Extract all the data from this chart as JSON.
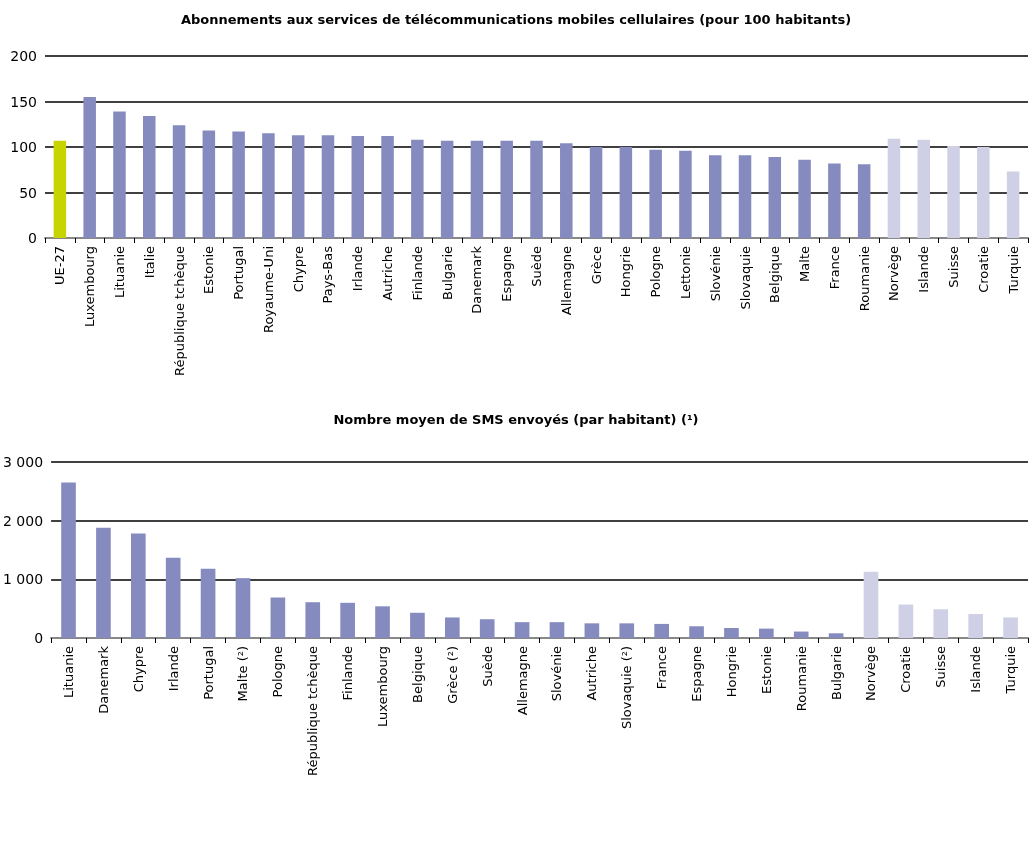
{
  "chart_data": [
    {
      "type": "bar",
      "title": "Abonnements aux services de télécommunications mobiles cellulaires (pour 100 habitants)",
      "categories": [
        "UE-27",
        "Luxembourg",
        "Lituanie",
        "Italie",
        "République tchèque",
        "Estonie",
        "Portugal",
        "Royaume-Uni",
        "Chypre",
        "Pays-Bas",
        "Irlande",
        "Autriche",
        "Finlande",
        "Bulgarie",
        "Danemark",
        "Espagne",
        "Suède",
        "Allemagne",
        "Grèce",
        "Hongrie",
        "Pologne",
        "Lettonie",
        "Slovénie",
        "Slovaquie",
        "Belgique",
        "Malte",
        "France",
        "Roumanie",
        "Norvège",
        "Islande",
        "Suisse",
        "Croatie",
        "Turquie"
      ],
      "values": [
        107,
        155,
        139,
        134,
        124,
        118,
        117,
        115,
        113,
        113,
        112,
        112,
        108,
        107,
        107,
        107,
        107,
        104,
        100,
        100,
        97,
        96,
        91,
        91,
        89,
        86,
        82,
        81,
        109,
        108,
        101,
        100,
        73
      ],
      "colors": [
        "#c8d400",
        "#858bbf",
        "#858bbf",
        "#858bbf",
        "#858bbf",
        "#858bbf",
        "#858bbf",
        "#858bbf",
        "#858bbf",
        "#858bbf",
        "#858bbf",
        "#858bbf",
        "#858bbf",
        "#858bbf",
        "#858bbf",
        "#858bbf",
        "#858bbf",
        "#858bbf",
        "#858bbf",
        "#858bbf",
        "#858bbf",
        "#858bbf",
        "#858bbf",
        "#858bbf",
        "#858bbf",
        "#858bbf",
        "#858bbf",
        "#858bbf",
        "#cfd0e6",
        "#cfd0e6",
        "#cfd0e6",
        "#cfd0e6",
        "#cfd0e6"
      ],
      "ylim": [
        0,
        200
      ],
      "yticks": [
        0,
        50,
        100,
        150,
        200
      ],
      "grid": "y"
    },
    {
      "type": "bar",
      "title": "Nombre moyen de SMS envoyés (par habitant) (¹)",
      "categories": [
        "Lituanie",
        "Danemark",
        "Chypre",
        "Irlande",
        "Portugal",
        "Malte (²)",
        "Pologne",
        "République tchèque",
        "Finlande",
        "Luxembourg",
        "Belgique",
        "Grèce (²)",
        "Suède",
        "Allemagne",
        "Slovénie",
        "Autriche",
        "Slovaquie (²)",
        "France",
        "Espagne",
        "Hongrie",
        "Estonie",
        "Roumanie",
        "Bulgarie",
        "Norvège",
        "Croatie",
        "Suisse",
        "Islande",
        "Turquie"
      ],
      "values": [
        2650,
        1880,
        1780,
        1370,
        1180,
        1020,
        690,
        610,
        600,
        540,
        430,
        350,
        320,
        270,
        270,
        250,
        250,
        240,
        200,
        170,
        160,
        110,
        80,
        1130,
        570,
        490,
        410,
        350
      ],
      "colors": [
        "#858bbf",
        "#858bbf",
        "#858bbf",
        "#858bbf",
        "#858bbf",
        "#858bbf",
        "#858bbf",
        "#858bbf",
        "#858bbf",
        "#858bbf",
        "#858bbf",
        "#858bbf",
        "#858bbf",
        "#858bbf",
        "#858bbf",
        "#858bbf",
        "#858bbf",
        "#858bbf",
        "#858bbf",
        "#858bbf",
        "#858bbf",
        "#858bbf",
        "#858bbf",
        "#cfd0e6",
        "#cfd0e6",
        "#cfd0e6",
        "#cfd0e6",
        "#cfd0e6"
      ],
      "ylim": [
        0,
        3000
      ],
      "yticks": [
        0,
        {
          "value": 1000,
          "label": "1 000"
        },
        {
          "value": 2000,
          "label": "2 000"
        },
        {
          "value": 3000,
          "label": "3 000"
        }
      ],
      "grid": "y"
    }
  ]
}
